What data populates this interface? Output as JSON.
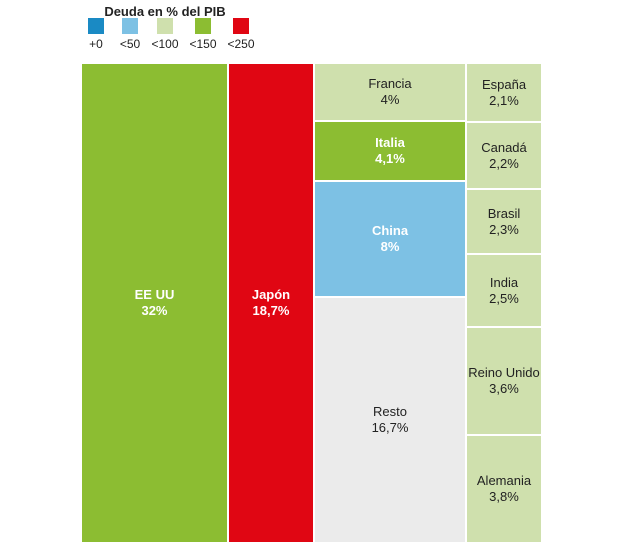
{
  "chart_data": {
    "type": "treemap",
    "title": "",
    "legend": {
      "title": "Deuda en % del PIB",
      "items": [
        {
          "label": "+0",
          "color": "#1a8ac4"
        },
        {
          "label": "<50",
          "color": "#7dc1e4"
        },
        {
          "label": "<100",
          "color": "#cfe0ad"
        },
        {
          "label": "<150",
          "color": "#8cbd32"
        },
        {
          "label": "<250",
          "color": "#e00613"
        }
      ]
    },
    "cells": [
      {
        "name": "EE UU",
        "value_label": "32%",
        "value": 32.0,
        "category": "<150",
        "text": "light"
      },
      {
        "name": "Japón",
        "value_label": "18,7%",
        "value": 18.7,
        "category": "<250",
        "text": "light"
      },
      {
        "name": "Francia",
        "value_label": "4%",
        "value": 4.0,
        "category": "<100",
        "text": "dark"
      },
      {
        "name": "Italia",
        "value_label": "4,1%",
        "value": 4.1,
        "category": "<150",
        "text": "light"
      },
      {
        "name": "China",
        "value_label": "8%",
        "value": 8.0,
        "category": "<50",
        "text": "light"
      },
      {
        "name": "Resto",
        "value_label": "16,7%",
        "value": 16.7,
        "category": "none",
        "text": "dark"
      },
      {
        "name": "España",
        "value_label": "2,1%",
        "value": 2.1,
        "category": "<100",
        "text": "dark"
      },
      {
        "name": "Canadá",
        "value_label": "2,2%",
        "value": 2.2,
        "category": "<100",
        "text": "dark"
      },
      {
        "name": "Brasil",
        "value_label": "2,3%",
        "value": 2.3,
        "category": "<100",
        "text": "dark"
      },
      {
        "name": "India",
        "value_label": "2,5%",
        "value": 2.5,
        "category": "<100",
        "text": "dark"
      },
      {
        "name": "Reino Unido",
        "value_label": "3,6%",
        "value": 3.6,
        "category": "<100",
        "text": "dark"
      },
      {
        "name": "Alemania",
        "value_label": "3,8%",
        "value": 3.8,
        "category": "<100",
        "text": "dark"
      }
    ],
    "neutral_color": "#ebebeb"
  }
}
